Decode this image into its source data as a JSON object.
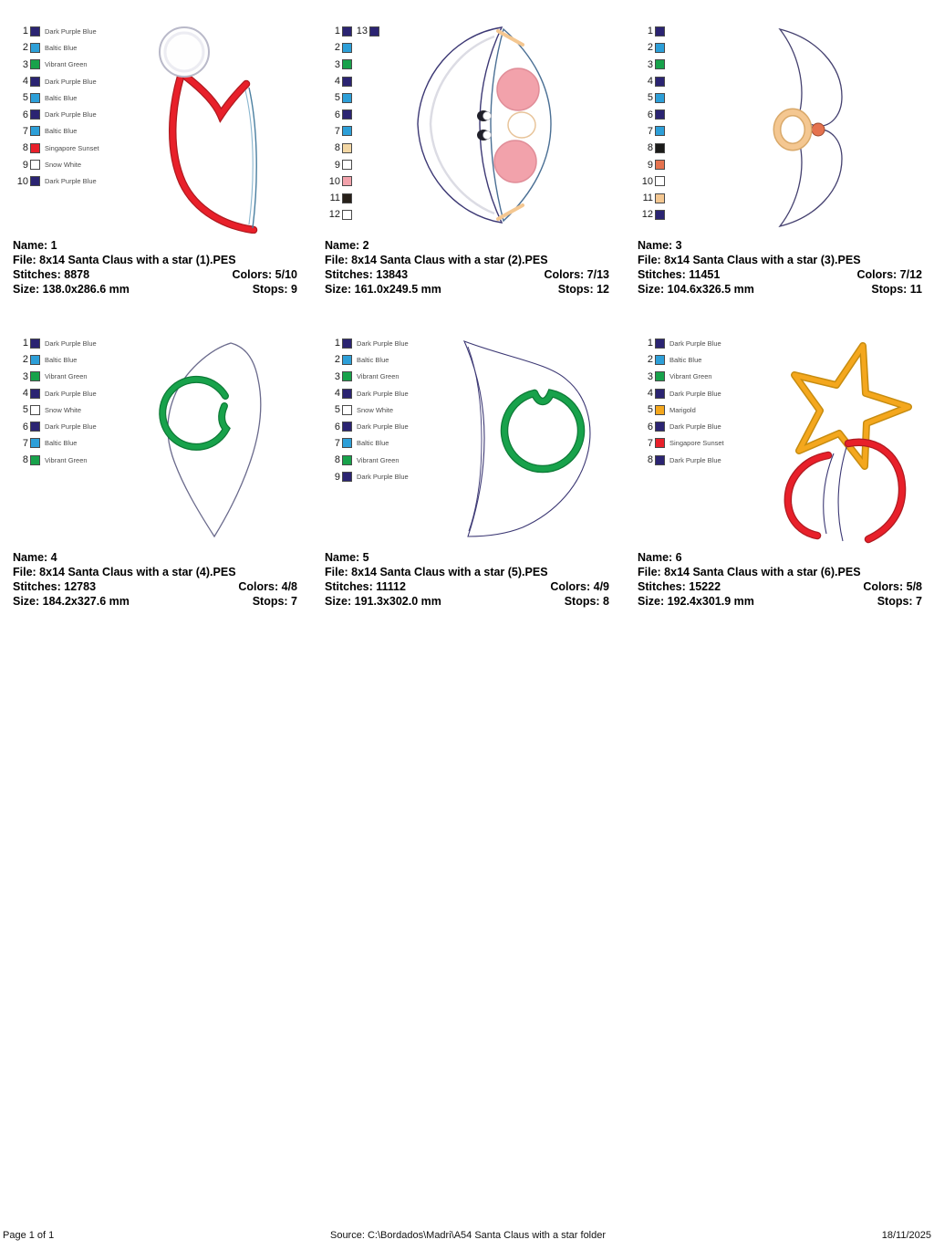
{
  "colors": {
    "dark_purple_blue": "#2b2472",
    "baltic_blue": "#2d9fd8",
    "vibrant_green": "#18a24b",
    "singapore_sunset": "#e8202a",
    "snow_white": "#ffffff",
    "marigold": "#f4a71d",
    "peach": "#f3d7a4",
    "pink": "#f2a2ab",
    "near_black": "#272019",
    "stitch_black": "#1b1b19",
    "salmon": "#e5724e",
    "tan": "#f4c791",
    "outline_navy": "#3c3874"
  },
  "designs": [
    {
      "name": "Name: 1",
      "file": "File: 8x14 Santa Claus with a star (1).PES",
      "stitches": "Stitches: 8878",
      "colors_ratio": "Colors: 5/10",
      "size": "Size: 138.0x286.6 mm",
      "stops": "Stops: 9",
      "palette": [
        {
          "num": "1",
          "color": "#2b2472",
          "label": "Dark Purple Blue"
        },
        {
          "num": "2",
          "color": "#2d9fd8",
          "label": "Baltic Blue"
        },
        {
          "num": "3",
          "color": "#18a24b",
          "label": "Vibrant Green"
        },
        {
          "num": "4",
          "color": "#2b2472",
          "label": "Dark Purple Blue"
        },
        {
          "num": "5",
          "color": "#2d9fd8",
          "label": "Baltic Blue"
        },
        {
          "num": "6",
          "color": "#2b2472",
          "label": "Dark Purple Blue"
        },
        {
          "num": "7",
          "color": "#2d9fd8",
          "label": "Baltic Blue"
        },
        {
          "num": "8",
          "color": "#e8202a",
          "label": "Singapore Sunset"
        },
        {
          "num": "9",
          "color": "#ffffff",
          "label": "Snow White"
        },
        {
          "num": "10",
          "color": "#2b2472",
          "label": "Dark Purple Blue"
        }
      ]
    },
    {
      "name": "Name: 2",
      "file": "File: 8x14 Santa Claus with a star (2).PES",
      "stitches": "Stitches: 13843",
      "colors_ratio": "Colors: 7/13",
      "size": "Size: 161.0x249.5 mm",
      "stops": "Stops: 12",
      "palette": [
        {
          "num": "1",
          "color": "#2b2472",
          "label": "",
          "extra": {
            "num": "13",
            "color": "#2b2472"
          }
        },
        {
          "num": "2",
          "color": "#2d9fd8",
          "label": ""
        },
        {
          "num": "3",
          "color": "#18a24b",
          "label": ""
        },
        {
          "num": "4",
          "color": "#2b2472",
          "label": ""
        },
        {
          "num": "5",
          "color": "#2d9fd8",
          "label": ""
        },
        {
          "num": "6",
          "color": "#2b2472",
          "label": ""
        },
        {
          "num": "7",
          "color": "#2d9fd8",
          "label": ""
        },
        {
          "num": "8",
          "color": "#f3d7a4",
          "label": ""
        },
        {
          "num": "9",
          "color": "#ffffff",
          "label": ""
        },
        {
          "num": "10",
          "color": "#f2a2ab",
          "label": ""
        },
        {
          "num": "11",
          "color": "#272019",
          "label": ""
        },
        {
          "num": "12",
          "color": "#ffffff",
          "label": ""
        }
      ]
    },
    {
      "name": "Name: 3",
      "file": "File: 8x14 Santa Claus with a star (3).PES",
      "stitches": "Stitches: 11451",
      "colors_ratio": "Colors: 7/12",
      "size": "Size: 104.6x326.5 mm",
      "stops": "Stops: 11",
      "palette": [
        {
          "num": "1",
          "color": "#2b2472",
          "label": ""
        },
        {
          "num": "2",
          "color": "#2d9fd8",
          "label": ""
        },
        {
          "num": "3",
          "color": "#18a24b",
          "label": ""
        },
        {
          "num": "4",
          "color": "#2b2472",
          "label": ""
        },
        {
          "num": "5",
          "color": "#2d9fd8",
          "label": ""
        },
        {
          "num": "6",
          "color": "#2b2472",
          "label": ""
        },
        {
          "num": "7",
          "color": "#2d9fd8",
          "label": ""
        },
        {
          "num": "8",
          "color": "#1b1b19",
          "label": ""
        },
        {
          "num": "9",
          "color": "#e5724e",
          "label": ""
        },
        {
          "num": "10",
          "color": "#ffffff",
          "label": ""
        },
        {
          "num": "11",
          "color": "#f4c791",
          "label": ""
        },
        {
          "num": "12",
          "color": "#2b2472",
          "label": ""
        }
      ]
    },
    {
      "name": "Name: 4",
      "file": "File: 8x14 Santa Claus with a star (4).PES",
      "stitches": "Stitches: 12783",
      "colors_ratio": "Colors: 4/8",
      "size": "Size: 184.2x327.6 mm",
      "stops": "Stops: 7",
      "palette": [
        {
          "num": "1",
          "color": "#2b2472",
          "label": "Dark Purple Blue"
        },
        {
          "num": "2",
          "color": "#2d9fd8",
          "label": "Baltic Blue"
        },
        {
          "num": "3",
          "color": "#18a24b",
          "label": "Vibrant Green"
        },
        {
          "num": "4",
          "color": "#2b2472",
          "label": "Dark Purple Blue"
        },
        {
          "num": "5",
          "color": "#ffffff",
          "label": "Snow White"
        },
        {
          "num": "6",
          "color": "#2b2472",
          "label": "Dark Purple Blue"
        },
        {
          "num": "7",
          "color": "#2d9fd8",
          "label": "Baltic Blue"
        },
        {
          "num": "8",
          "color": "#18a24b",
          "label": "Vibrant Green"
        }
      ]
    },
    {
      "name": "Name: 5",
      "file": "File: 8x14 Santa Claus with a star (5).PES",
      "stitches": "Stitches: 11112",
      "colors_ratio": "Colors: 4/9",
      "size": "Size: 191.3x302.0 mm",
      "stops": "Stops: 8",
      "palette": [
        {
          "num": "1",
          "color": "#2b2472",
          "label": "Dark Purple Blue"
        },
        {
          "num": "2",
          "color": "#2d9fd8",
          "label": "Baltic Blue"
        },
        {
          "num": "3",
          "color": "#18a24b",
          "label": "Vibrant Green"
        },
        {
          "num": "4",
          "color": "#2b2472",
          "label": "Dark Purple Blue"
        },
        {
          "num": "5",
          "color": "#ffffff",
          "label": "Snow White"
        },
        {
          "num": "6",
          "color": "#2b2472",
          "label": "Dark Purple Blue"
        },
        {
          "num": "7",
          "color": "#2d9fd8",
          "label": "Baltic Blue"
        },
        {
          "num": "8",
          "color": "#18a24b",
          "label": "Vibrant Green"
        },
        {
          "num": "9",
          "color": "#2b2472",
          "label": "Dark Purple Blue"
        }
      ]
    },
    {
      "name": "Name: 6",
      "file": "File: 8x14 Santa Claus with a star (6).PES",
      "stitches": "Stitches: 15222",
      "colors_ratio": "Colors: 5/8",
      "size": "Size: 192.4x301.9 mm",
      "stops": "Stops: 7",
      "palette": [
        {
          "num": "1",
          "color": "#2b2472",
          "label": "Dark Purple Blue"
        },
        {
          "num": "2",
          "color": "#2d9fd8",
          "label": "Baltic Blue"
        },
        {
          "num": "3",
          "color": "#18a24b",
          "label": "Vibrant Green"
        },
        {
          "num": "4",
          "color": "#2b2472",
          "label": "Dark Purple Blue"
        },
        {
          "num": "5",
          "color": "#f4a71d",
          "label": "Marigold"
        },
        {
          "num": "6",
          "color": "#2b2472",
          "label": "Dark Purple Blue"
        },
        {
          "num": "7",
          "color": "#e8202a",
          "label": "Singapore Sunset"
        },
        {
          "num": "8",
          "color": "#2b2472",
          "label": "Dark Purple Blue"
        }
      ]
    }
  ],
  "footer": {
    "page_label": "Page 1 of 1",
    "source": "Source: C:\\Bordados\\Madri\\A54 Santa Claus with a star folder",
    "date": "18/11/2025"
  }
}
